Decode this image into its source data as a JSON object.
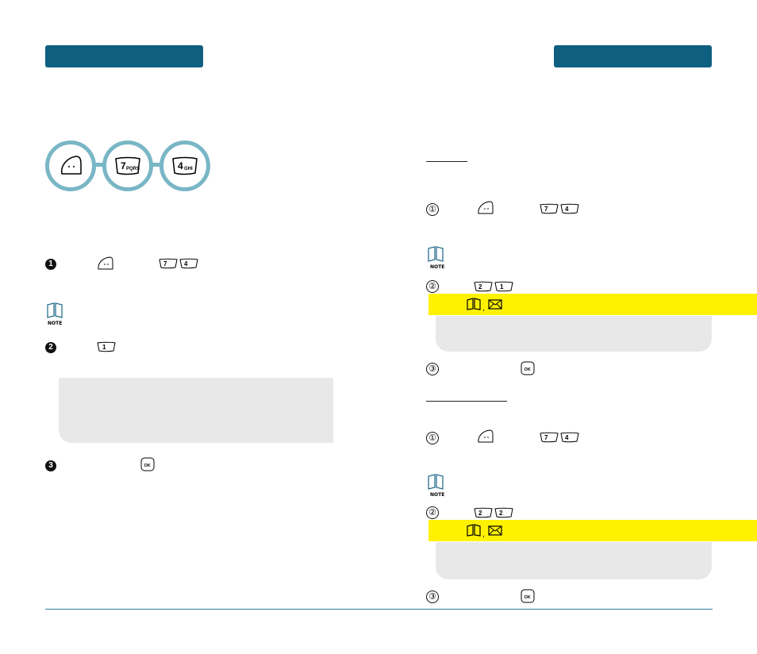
{
  "header": {
    "left_tab_label": "",
    "right_tab_label": ""
  },
  "path_icons": [
    "menu-key-icon",
    "key-7-pqrs-icon",
    "key-4-ghi-icon"
  ],
  "path_key_labels": {
    "key7": "7",
    "key7_sub": "PQRS",
    "key4": "4",
    "key4_sub": "GHI"
  },
  "left_column": {
    "steps": [
      {
        "marker": "1",
        "keys": [
          "menu",
          "7",
          "4"
        ]
      },
      {
        "marker": "2",
        "keys": [
          "1"
        ]
      },
      {
        "marker": "3",
        "keys": [
          "ok"
        ]
      }
    ],
    "ok_key_label": "OK"
  },
  "right_column": {
    "sections": [
      {
        "steps": [
          {
            "marker": "①",
            "keys": [
              "menu",
              "7",
              "4"
            ]
          },
          {
            "marker": "②",
            "keys": [
              "2",
              "1"
            ]
          },
          {
            "marker": "③",
            "keys": [
              "ok"
            ]
          }
        ],
        "highlight_separator": ","
      },
      {
        "steps": [
          {
            "marker": "①",
            "keys": [
              "menu",
              "7",
              "4"
            ]
          },
          {
            "marker": "②",
            "keys": [
              "2",
              "2"
            ]
          },
          {
            "marker": "③",
            "keys": [
              "ok"
            ]
          }
        ],
        "highlight_separator": ","
      }
    ],
    "ok_key_label": "OK"
  },
  "note_label": "NOTE",
  "colors": {
    "tab": "#0f5f80",
    "circle_ring": "#79b6c6",
    "highlight": "#fff200",
    "panel": "#e8e8e8",
    "rule": "#2e7ea0"
  }
}
